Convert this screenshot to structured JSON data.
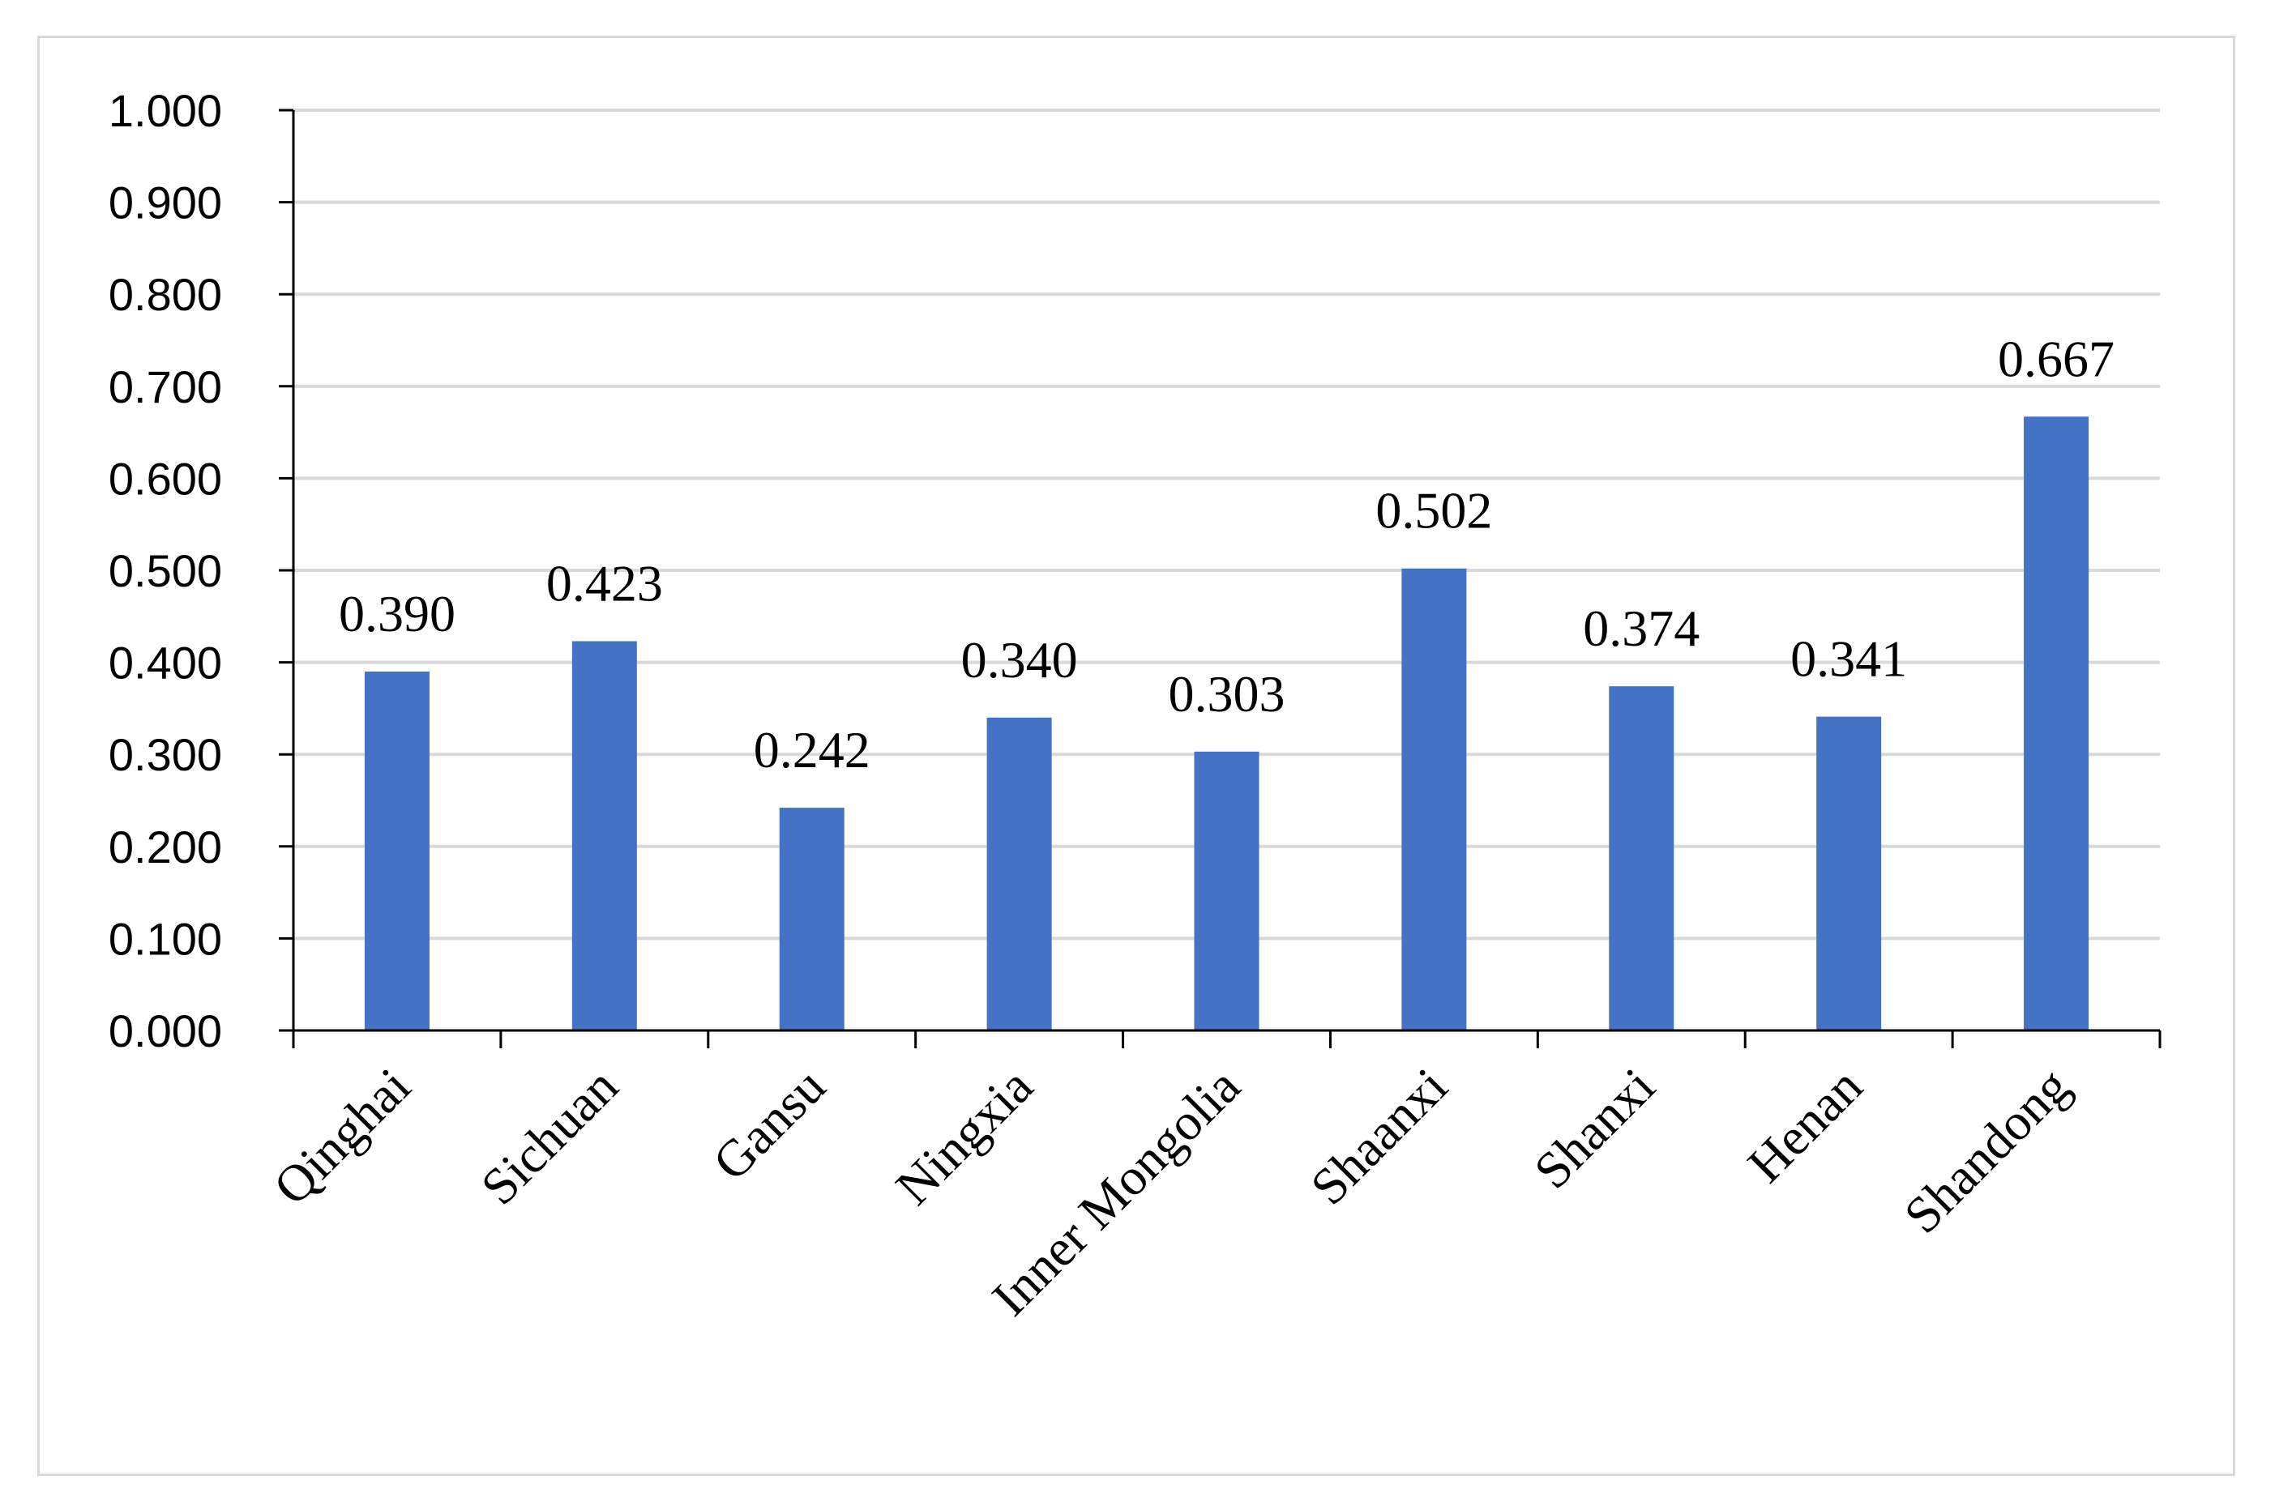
{
  "chart_data": {
    "type": "bar",
    "title": "",
    "xlabel": "",
    "ylabel": "",
    "categories": [
      "Qinghai",
      "Sichuan",
      "Gansu",
      "Ningxia",
      "Inner Mongolia",
      "Shaanxi",
      "Shanxi",
      "Henan",
      "Shandong"
    ],
    "values": [
      0.39,
      0.423,
      0.242,
      0.34,
      0.303,
      0.502,
      0.374,
      0.341,
      0.667
    ],
    "value_labels": [
      "0.390",
      "0.423",
      "0.242",
      "0.340",
      "0.303",
      "0.502",
      "0.374",
      "0.341",
      "0.667"
    ],
    "ylim": [
      0,
      1
    ],
    "yticks": [
      0.0,
      0.1,
      0.2,
      0.3,
      0.4,
      0.5,
      0.6,
      0.7,
      0.8,
      0.9,
      1.0
    ],
    "ytick_labels": [
      "0.000",
      "0.100",
      "0.200",
      "0.300",
      "0.400",
      "0.500",
      "0.600",
      "0.700",
      "0.800",
      "0.900",
      "1.000"
    ],
    "grid": true,
    "legend": "none",
    "colors": {
      "bar": "#4472C4",
      "grid": "#d9d9d9",
      "axis": "#000000",
      "frame": "#d9d9d9"
    }
  }
}
